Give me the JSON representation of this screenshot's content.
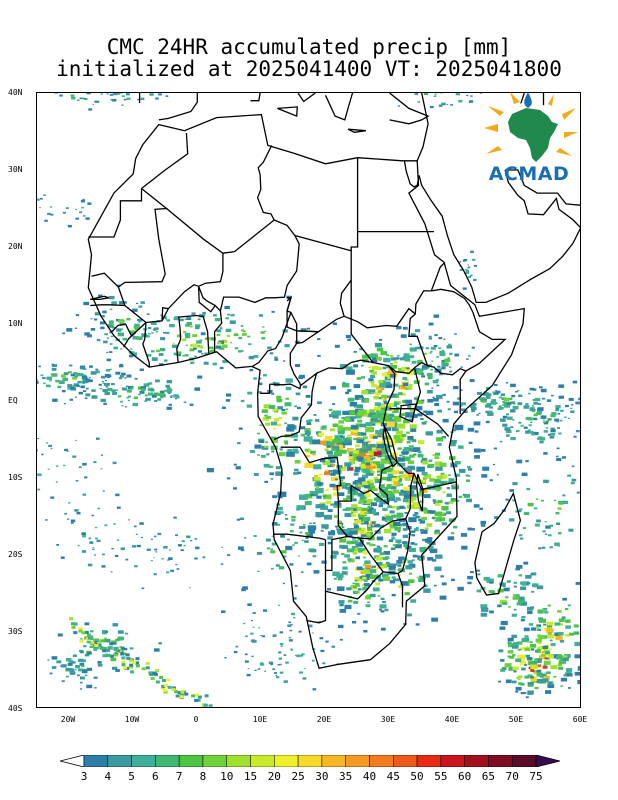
{
  "title": {
    "line1": "CMC 24HR accumulated precip [mm]",
    "line2": "initialized at 2025041400 VT: 2025041800"
  },
  "logo": {
    "text": "ACMAD",
    "icon": "africa-map-logo-icon"
  },
  "axes": {
    "lat_labels": [
      "40N",
      "30N",
      "20N",
      "10N",
      "EQ",
      "10S",
      "20S",
      "30S",
      "40S"
    ],
    "lon_labels": [
      "20W",
      "10W",
      "0",
      "10E",
      "20E",
      "30E",
      "40E",
      "50E",
      "60E"
    ],
    "lon_range": [
      -25,
      60
    ],
    "lat_range": [
      -40,
      40
    ]
  },
  "colorbar": {
    "labels": [
      "3",
      "4",
      "5",
      "6",
      "7",
      "8",
      "10",
      "15",
      "20",
      "25",
      "30",
      "35",
      "40",
      "45",
      "50",
      "55",
      "60",
      "65",
      "70",
      "75"
    ],
    "colors": [
      "#2e7fa8",
      "#3a9aa0",
      "#3fae9a",
      "#3fb873",
      "#4ec442",
      "#6fd23a",
      "#9ee12f",
      "#c9ea2a",
      "#eef02a",
      "#f8d82a",
      "#f7b624",
      "#f49a22",
      "#f37a1e",
      "#ee5a1b",
      "#e52b14",
      "#c8141a",
      "#a3101c",
      "#7f0c22",
      "#5c0a2a",
      "#3a0a50"
    ]
  }
}
